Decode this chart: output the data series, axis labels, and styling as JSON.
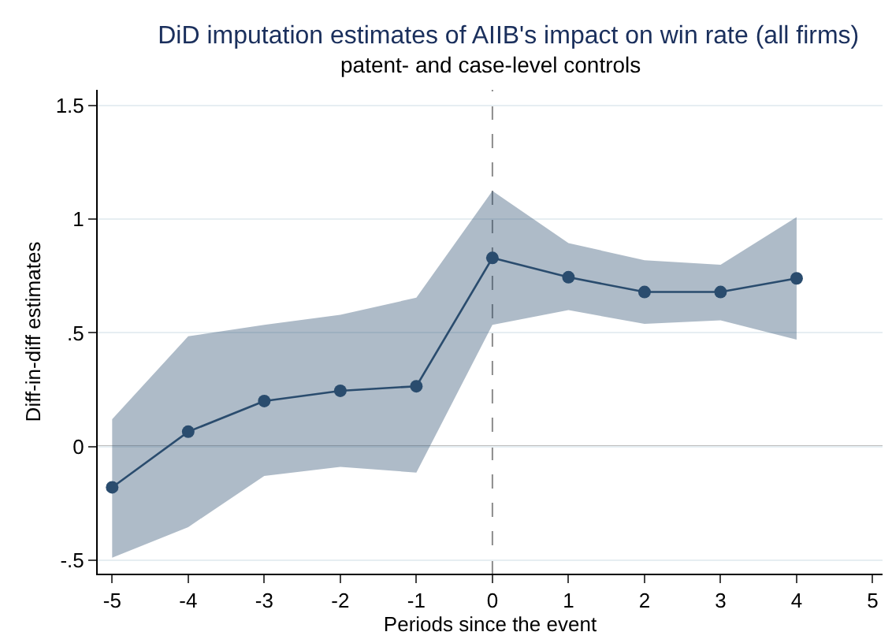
{
  "chart_data": {
    "type": "line",
    "title": "DiD imputation estimates of AIIB's impact on win rate (all firms)",
    "subtitle": "patent- and case-level controls",
    "xlabel": "Periods since the event",
    "ylabel": "Diff-in-diff estimates",
    "x": [
      -5,
      -4,
      -3,
      -2,
      -1,
      0,
      1,
      2,
      3,
      4
    ],
    "series": [
      {
        "color": "#2a4c6e",
        "values": [
          -0.18,
          0.065,
          0.2,
          0.245,
          0.265,
          0.83,
          0.745,
          0.68,
          0.68,
          0.74
        ],
        "lower": [
          -0.49,
          -0.355,
          -0.13,
          -0.09,
          -0.115,
          0.535,
          0.6,
          0.54,
          0.555,
          0.47
        ],
        "upper": [
          0.12,
          0.485,
          0.535,
          0.58,
          0.655,
          1.125,
          0.895,
          0.82,
          0.8,
          1.01
        ]
      }
    ],
    "xlim": [
      -5.19,
      5.13
    ],
    "xticks": [
      -5,
      -4,
      -3,
      -2,
      -1,
      0,
      1,
      2,
      3,
      4,
      5
    ],
    "ylim": [
      -0.56,
      1.57
    ],
    "yticks": [
      {
        "value": -0.5,
        "label": "-.5"
      },
      0,
      {
        "value": 0.5,
        "label": ".5"
      },
      1,
      1.5
    ],
    "grid": "y",
    "marker": "circle",
    "line_style": "solid",
    "ref_lines": [
      {
        "axis": "y",
        "value": 0,
        "color": "#7f7f7f",
        "line_style": "solid"
      },
      {
        "axis": "x",
        "value": 0,
        "color": "#8c8c8c",
        "line_style": "dashed"
      }
    ]
  }
}
